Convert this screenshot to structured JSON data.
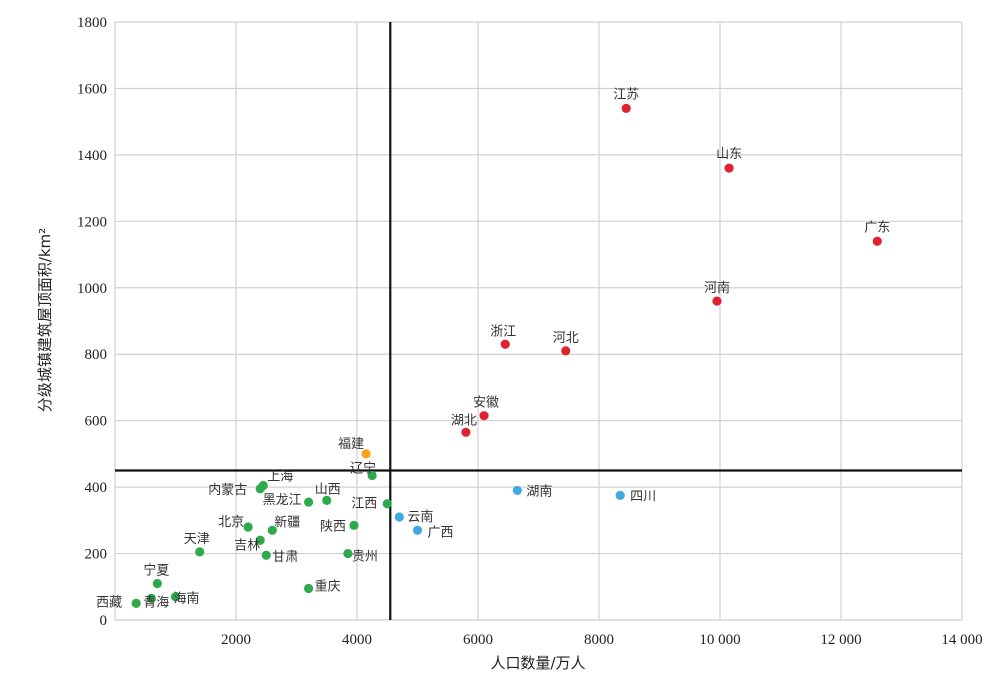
{
  "chart_data": {
    "type": "scatter",
    "title": "",
    "xlabel": "人口数量/万人",
    "ylabel": "分级城镇建筑屋顶面积/km²",
    "xlim": [
      0,
      14000
    ],
    "ylim": [
      0,
      1800
    ],
    "xticks": [
      2000,
      4000,
      6000,
      8000,
      10000,
      12000,
      14000
    ],
    "xtick_labels": [
      "2000",
      "4000",
      "6000",
      "8000",
      "10 000",
      "12 000",
      "14 000"
    ],
    "yticks": [
      0,
      200,
      400,
      600,
      800,
      1000,
      1200,
      1400,
      1600,
      1800
    ],
    "ytick_labels": [
      "0",
      "200",
      "400",
      "600",
      "800",
      "1000",
      "1200",
      "1400",
      "1600",
      "1800"
    ],
    "grid": true,
    "reference_lines": {
      "x": 4550,
      "y": 450
    },
    "colors": {
      "red": "#e02331",
      "blue": "#3fa9e0",
      "green": "#2eaa4a",
      "orange": "#f5a31a"
    },
    "points": [
      {
        "name": "江苏",
        "x": 8450,
        "y": 1540,
        "color": "red"
      },
      {
        "name": "山东",
        "x": 10150,
        "y": 1360,
        "color": "red"
      },
      {
        "name": "广东",
        "x": 12600,
        "y": 1140,
        "color": "red"
      },
      {
        "name": "河南",
        "x": 9950,
        "y": 960,
        "color": "red"
      },
      {
        "name": "浙江",
        "x": 6450,
        "y": 830,
        "color": "red"
      },
      {
        "name": "河北",
        "x": 7450,
        "y": 810,
        "color": "red"
      },
      {
        "name": "安徽",
        "x": 6100,
        "y": 615,
        "color": "red"
      },
      {
        "name": "湖北",
        "x": 5800,
        "y": 565,
        "color": "red"
      },
      {
        "name": "湖南",
        "x": 6650,
        "y": 390,
        "color": "blue"
      },
      {
        "name": "四川",
        "x": 8350,
        "y": 375,
        "color": "blue"
      },
      {
        "name": "云南",
        "x": 4700,
        "y": 310,
        "color": "blue"
      },
      {
        "name": "广西",
        "x": 5000,
        "y": 270,
        "color": "blue"
      },
      {
        "name": "福建",
        "x": 4150,
        "y": 500,
        "color": "orange"
      },
      {
        "name": "辽宁",
        "x": 4250,
        "y": 435,
        "color": "green"
      },
      {
        "name": "江西",
        "x": 4500,
        "y": 350,
        "color": "green"
      },
      {
        "name": "上海",
        "x": 2450,
        "y": 405,
        "color": "green"
      },
      {
        "name": "内蒙古",
        "x": 2400,
        "y": 395,
        "color": "green"
      },
      {
        "name": "山西",
        "x": 3500,
        "y": 360,
        "color": "green"
      },
      {
        "name": "黑龙江",
        "x": 3200,
        "y": 355,
        "color": "green"
      },
      {
        "name": "陕西",
        "x": 3950,
        "y": 285,
        "color": "green"
      },
      {
        "name": "新疆",
        "x": 2600,
        "y": 270,
        "color": "green"
      },
      {
        "name": "北京",
        "x": 2200,
        "y": 280,
        "color": "green"
      },
      {
        "name": "吉林",
        "x": 2400,
        "y": 240,
        "color": "green"
      },
      {
        "name": "甘肃",
        "x": 2500,
        "y": 195,
        "color": "green"
      },
      {
        "name": "贵州",
        "x": 3850,
        "y": 200,
        "color": "green"
      },
      {
        "name": "天津",
        "x": 1400,
        "y": 205,
        "color": "green"
      },
      {
        "name": "重庆",
        "x": 3200,
        "y": 95,
        "color": "green"
      },
      {
        "name": "宁夏",
        "x": 700,
        "y": 110,
        "color": "green"
      },
      {
        "name": "海南",
        "x": 1000,
        "y": 70,
        "color": "green"
      },
      {
        "name": "青海",
        "x": 600,
        "y": 65,
        "color": "green"
      },
      {
        "name": "西藏",
        "x": 350,
        "y": 50,
        "color": "green"
      }
    ]
  }
}
